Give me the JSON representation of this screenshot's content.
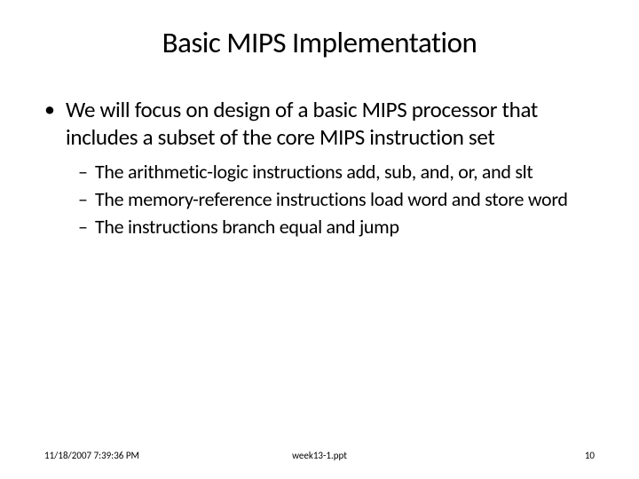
{
  "slide": {
    "title": "Basic MIPS Implementation",
    "mainBullet": {
      "marker": "•",
      "text": "We will focus on design of a basic MIPS processor that includes a subset of the core MIPS instruction set"
    },
    "subBullets": [
      {
        "marker": "–",
        "text": "The arithmetic-logic instructions add, sub, and, or, and slt"
      },
      {
        "marker": "–",
        "text": "The memory-reference instructions load word and store word"
      },
      {
        "marker": "–",
        "text": "The instructions branch equal and jump"
      }
    ]
  },
  "footer": {
    "datetime": "11/18/2007 7:39:36 PM",
    "filename": "week13-1.ppt",
    "pageNumber": "10"
  },
  "styling": {
    "background_color": "#ffffff",
    "text_color": "#000000",
    "title_fontsize": 33,
    "body_fontsize": 25,
    "sub_fontsize": 22,
    "footer_fontsize": 11,
    "font_family": "Calibri"
  }
}
